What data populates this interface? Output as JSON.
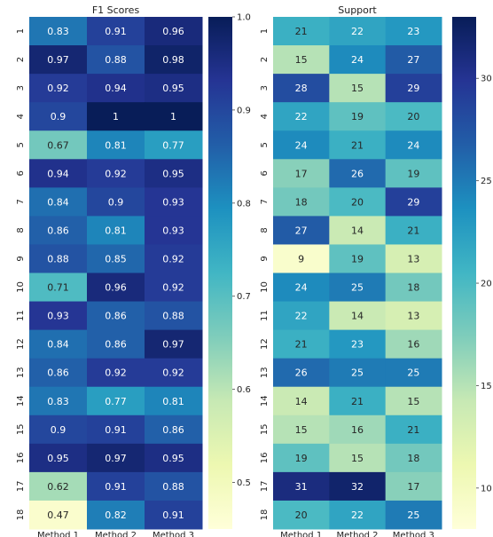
{
  "chart_data": [
    {
      "type": "heatmap",
      "title": "F1 Scores",
      "rows": [
        "1",
        "2",
        "3",
        "4",
        "5",
        "6",
        "7",
        "8",
        "9",
        "10",
        "11",
        "12",
        "13",
        "14",
        "15",
        "16",
        "17",
        "18"
      ],
      "columns": [
        "Method 1",
        "Method 2",
        "Method 3"
      ],
      "values": [
        [
          0.83,
          0.91,
          0.96
        ],
        [
          0.97,
          0.88,
          0.98
        ],
        [
          0.92,
          0.94,
          0.95
        ],
        [
          0.9,
          1,
          1
        ],
        [
          0.67,
          0.81,
          0.77
        ],
        [
          0.94,
          0.92,
          0.95
        ],
        [
          0.84,
          0.9,
          0.93
        ],
        [
          0.86,
          0.81,
          0.93
        ],
        [
          0.88,
          0.85,
          0.92
        ],
        [
          0.71,
          0.96,
          0.92
        ],
        [
          0.93,
          0.86,
          0.88
        ],
        [
          0.84,
          0.86,
          0.97
        ],
        [
          0.86,
          0.92,
          0.92
        ],
        [
          0.83,
          0.77,
          0.81
        ],
        [
          0.9,
          0.91,
          0.86
        ],
        [
          0.95,
          0.97,
          0.95
        ],
        [
          0.62,
          0.91,
          0.88
        ],
        [
          0.47,
          0.82,
          0.91
        ]
      ],
      "vmin": 0.45,
      "vmax": 1.0,
      "colorbar_ticks": [
        "0.5",
        "0.6",
        "0.7",
        "0.8",
        "0.9",
        "1.0"
      ],
      "colormap": "YlGnBu"
    },
    {
      "type": "heatmap",
      "title": "Support",
      "rows": [
        "1",
        "2",
        "3",
        "4",
        "5",
        "6",
        "7",
        "8",
        "9",
        "10",
        "11",
        "12",
        "13",
        "14",
        "15",
        "16",
        "17",
        "18"
      ],
      "columns": [
        "Method 1",
        "Method 2",
        "Method 3"
      ],
      "values": [
        [
          21,
          22,
          23
        ],
        [
          15,
          24,
          27
        ],
        [
          28,
          15,
          29
        ],
        [
          22,
          19,
          20
        ],
        [
          24,
          21,
          24
        ],
        [
          17,
          26,
          19
        ],
        [
          18,
          20,
          29
        ],
        [
          27,
          14,
          21
        ],
        [
          9,
          19,
          13
        ],
        [
          24,
          25,
          18
        ],
        [
          22,
          14,
          13
        ],
        [
          21,
          23,
          16
        ],
        [
          26,
          25,
          25
        ],
        [
          14,
          21,
          15
        ],
        [
          15,
          16,
          21
        ],
        [
          19,
          15,
          18
        ],
        [
          31,
          32,
          17
        ],
        [
          20,
          22,
          25
        ]
      ],
      "vmin": 8,
      "vmax": 33,
      "colorbar_ticks": [
        "10",
        "15",
        "20",
        "25",
        "30"
      ],
      "colormap": "YlGnBu"
    }
  ]
}
